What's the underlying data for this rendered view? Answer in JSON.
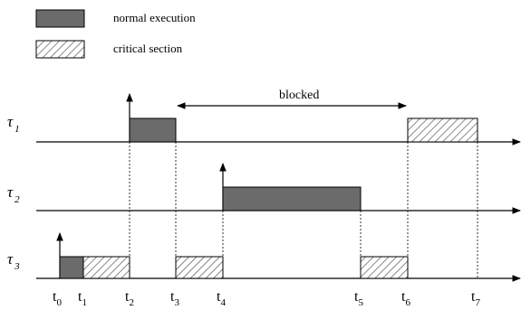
{
  "legend": {
    "normal": "normal execution",
    "critical": "critical section"
  },
  "tasks": [
    {
      "base": "τ",
      "sub": "1"
    },
    {
      "base": "τ",
      "sub": "2"
    },
    {
      "base": "τ",
      "sub": "3"
    }
  ],
  "times": [
    {
      "base": "t",
      "sub": "0"
    },
    {
      "base": "t",
      "sub": "1"
    },
    {
      "base": "t",
      "sub": "2"
    },
    {
      "base": "t",
      "sub": "3"
    },
    {
      "base": "t",
      "sub": "4"
    },
    {
      "base": "t",
      "sub": "5"
    },
    {
      "base": "t",
      "sub": "6"
    },
    {
      "base": "t",
      "sub": "7"
    }
  ],
  "annotation": {
    "blocked": "blocked"
  },
  "colors": {
    "normal_fill": "#6b6b6b",
    "stroke": "#000000"
  }
}
